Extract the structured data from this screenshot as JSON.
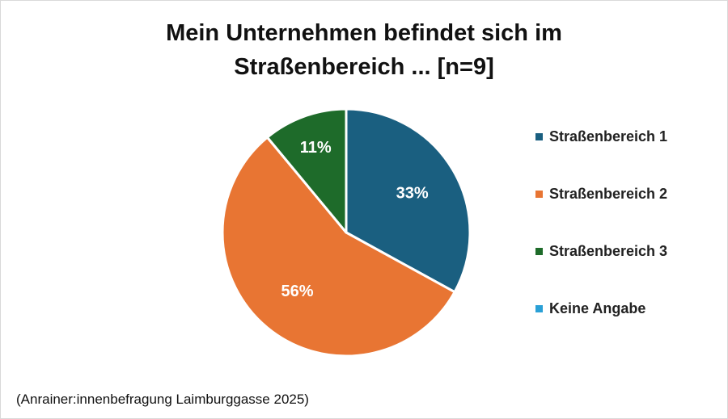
{
  "chart_data": {
    "type": "pie",
    "title_lines": [
      "Mein Unternehmen befindet sich im",
      "Straßenbereich ... [n=9]"
    ],
    "categories": [
      "Straßenbereich 1",
      "Straßenbereich 2",
      "Straßenbereich 3",
      "Keine Angabe"
    ],
    "values": [
      33,
      56,
      11,
      0
    ],
    "data_labels": [
      "33%",
      "56%",
      "11%",
      ""
    ],
    "colors": [
      "#1a5f80",
      "#e87533",
      "#1e6b2a",
      "#2aa0d6"
    ],
    "label_color": "#ffffff",
    "legend": "right",
    "source": "(Anrainer:innenbefragung Laimburggasse 2025)"
  }
}
